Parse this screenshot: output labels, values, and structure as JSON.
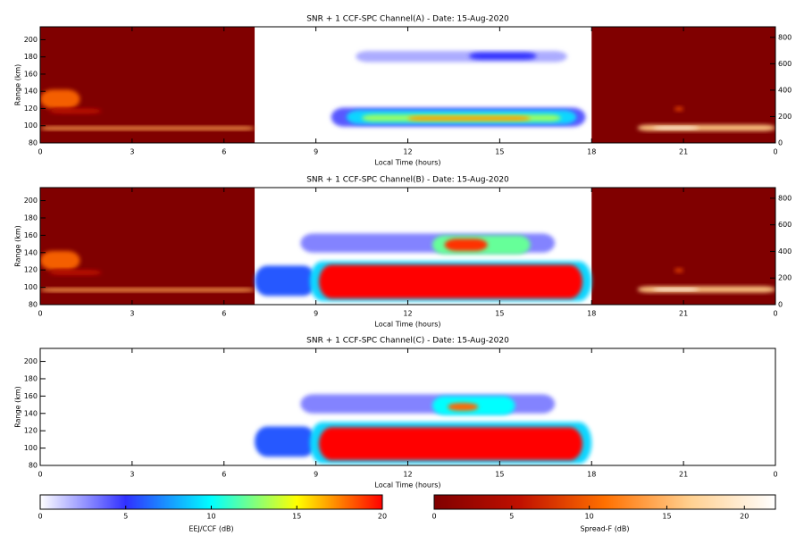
{
  "chart_data": [
    {
      "type": "heatmap",
      "title": "SNR + 1 CCF-SPC Channel(A) - Date: 15-Aug-2020",
      "xlabel": "Local Time (hours)",
      "ylabel": "Range (km)",
      "xlim": [
        0,
        24
      ],
      "xticks": [
        0,
        3,
        6,
        9,
        12,
        15,
        18,
        21,
        {
          "value": 24,
          "label": "0"
        }
      ],
      "ylim": [
        80,
        215
      ],
      "yticks": [
        80,
        100,
        120,
        140,
        160,
        180,
        200
      ],
      "y2lim": [
        0,
        880
      ],
      "y2ticks": [
        0,
        200,
        400,
        600,
        800
      ],
      "spread_f_windows": [
        [
          0,
          7
        ],
        [
          18,
          24
        ]
      ],
      "layers": [
        {
          "scale": "spread",
          "time": [
            0,
            7
          ],
          "range": [
            95,
            99
          ],
          "snr": 14
        },
        {
          "scale": "spread",
          "time": [
            0,
            1.3
          ],
          "range": [
            120,
            142
          ],
          "snr": 10
        },
        {
          "scale": "spread",
          "time": [
            0.3,
            2
          ],
          "range": [
            114,
            120
          ],
          "snr": 5
        },
        {
          "scale": "spread",
          "time": [
            19.5,
            24
          ],
          "range": [
            94,
            101
          ],
          "snr": 16
        },
        {
          "scale": "spread",
          "time": [
            20,
            21.5
          ],
          "range": [
            96,
            99
          ],
          "snr": 21
        },
        {
          "scale": "spread",
          "time": [
            20.7,
            21
          ],
          "range": [
            117,
            122
          ],
          "snr": 8
        },
        {
          "scale": "eej",
          "time": [
            10.3,
            17.2
          ],
          "range": [
            174,
            187
          ],
          "snr": 2
        },
        {
          "scale": "eej",
          "time": [
            14,
            16.2
          ],
          "range": [
            177,
            185
          ],
          "snr": 5
        },
        {
          "scale": "eej",
          "time": [
            9.5,
            17.8
          ],
          "range": [
            99,
            121
          ],
          "snr": 4
        },
        {
          "scale": "eej",
          "time": [
            10,
            17.5
          ],
          "range": [
            102,
            118
          ],
          "snr": 9
        },
        {
          "scale": "eej",
          "time": [
            10.5,
            17
          ],
          "range": [
            105,
            113
          ],
          "snr": 13
        },
        {
          "scale": "eej",
          "time": [
            12,
            16
          ],
          "range": [
            106,
            111
          ],
          "snr": 17
        }
      ]
    },
    {
      "type": "heatmap",
      "title": "SNR + 1 CCF-SPC Channel(B) - Date: 15-Aug-2020",
      "xlabel": "Local Time (hours)",
      "ylabel": "Range (km)",
      "xlim": [
        0,
        24
      ],
      "xticks": [
        0,
        3,
        6,
        9,
        12,
        15,
        18,
        21,
        {
          "value": 24,
          "label": "0"
        }
      ],
      "ylim": [
        80,
        215
      ],
      "yticks": [
        80,
        100,
        120,
        140,
        160,
        180,
        200
      ],
      "y2lim": [
        0,
        880
      ],
      "y2ticks": [
        0,
        200,
        400,
        600,
        800
      ],
      "spread_f_windows": [
        [
          0,
          7
        ],
        [
          18,
          24
        ]
      ],
      "layers": [
        {
          "scale": "spread",
          "time": [
            0,
            7
          ],
          "range": [
            95,
            99
          ],
          "snr": 14
        },
        {
          "scale": "spread",
          "time": [
            0,
            1.3
          ],
          "range": [
            120,
            142
          ],
          "snr": 10
        },
        {
          "scale": "spread",
          "time": [
            0.3,
            2
          ],
          "range": [
            114,
            120
          ],
          "snr": 5
        },
        {
          "scale": "spread",
          "time": [
            19.5,
            24
          ],
          "range": [
            94,
            101
          ],
          "snr": 16
        },
        {
          "scale": "spread",
          "time": [
            20,
            21.5
          ],
          "range": [
            96,
            99
          ],
          "snr": 21
        },
        {
          "scale": "spread",
          "time": [
            20.7,
            21
          ],
          "range": [
            117,
            122
          ],
          "snr": 8
        },
        {
          "scale": "eej",
          "time": [
            7,
            9
          ],
          "range": [
            90,
            125
          ],
          "snr": 6
        },
        {
          "scale": "eej",
          "time": [
            8.5,
            16.8
          ],
          "range": [
            140,
            162
          ],
          "snr": 3
        },
        {
          "scale": "eej",
          "time": [
            12.8,
            16
          ],
          "range": [
            138,
            160
          ],
          "snr": 12
        },
        {
          "scale": "eej",
          "time": [
            13.2,
            14.6
          ],
          "range": [
            142,
            156
          ],
          "snr": 19
        },
        {
          "scale": "eej",
          "time": [
            8.8,
            18
          ],
          "range": [
            84,
            130
          ],
          "snr": 9
        },
        {
          "scale": "eej",
          "time": [
            9.1,
            17.7
          ],
          "range": [
            87,
            126
          ],
          "snr": 20
        }
      ]
    },
    {
      "type": "heatmap",
      "title": "SNR + 1 CCF-SPC Channel(C) - Date: 15-Aug-2020",
      "xlabel": "Local Time (hours)",
      "ylabel": "Range (km)",
      "xlim": [
        0,
        24
      ],
      "xticks": [
        0,
        3,
        6,
        9,
        12,
        15,
        18,
        21,
        {
          "value": 24,
          "label": "0"
        }
      ],
      "ylim": [
        80,
        215
      ],
      "yticks": [
        80,
        100,
        120,
        140,
        160,
        180,
        200
      ],
      "layers": [
        {
          "scale": "eej",
          "time": [
            7,
            9
          ],
          "range": [
            90,
            125
          ],
          "snr": 6
        },
        {
          "scale": "eej",
          "time": [
            8.5,
            16.8
          ],
          "range": [
            140,
            162
          ],
          "snr": 3
        },
        {
          "scale": "eej",
          "time": [
            12.8,
            15.5
          ],
          "range": [
            138,
            160
          ],
          "snr": 10
        },
        {
          "scale": "eej",
          "time": [
            13.3,
            14.3
          ],
          "range": [
            143,
            152
          ],
          "snr": 18
        },
        {
          "scale": "eej",
          "time": [
            8.8,
            18
          ],
          "range": [
            82,
            130
          ],
          "snr": 9
        },
        {
          "scale": "eej",
          "time": [
            9.1,
            17.7
          ],
          "range": [
            86,
            124
          ],
          "snr": 20
        }
      ]
    }
  ],
  "colorbars": [
    {
      "name": "eej",
      "label": "EEJ/CCF (dB)",
      "lim": [
        0,
        20
      ],
      "ticks": [
        0,
        5,
        10,
        15,
        20
      ],
      "colors": [
        "#ffffff",
        "#3030ff",
        "#00ffff",
        "#ffff00",
        "#ff0000"
      ]
    },
    {
      "name": "spread",
      "label": "Spread-F (dB)",
      "lim": [
        0,
        22
      ],
      "ticks": [
        0,
        5,
        10,
        15,
        20
      ],
      "colors": [
        "#800000",
        "#c01000",
        "#ff7000",
        "#ffd090",
        "#ffffff"
      ]
    }
  ]
}
